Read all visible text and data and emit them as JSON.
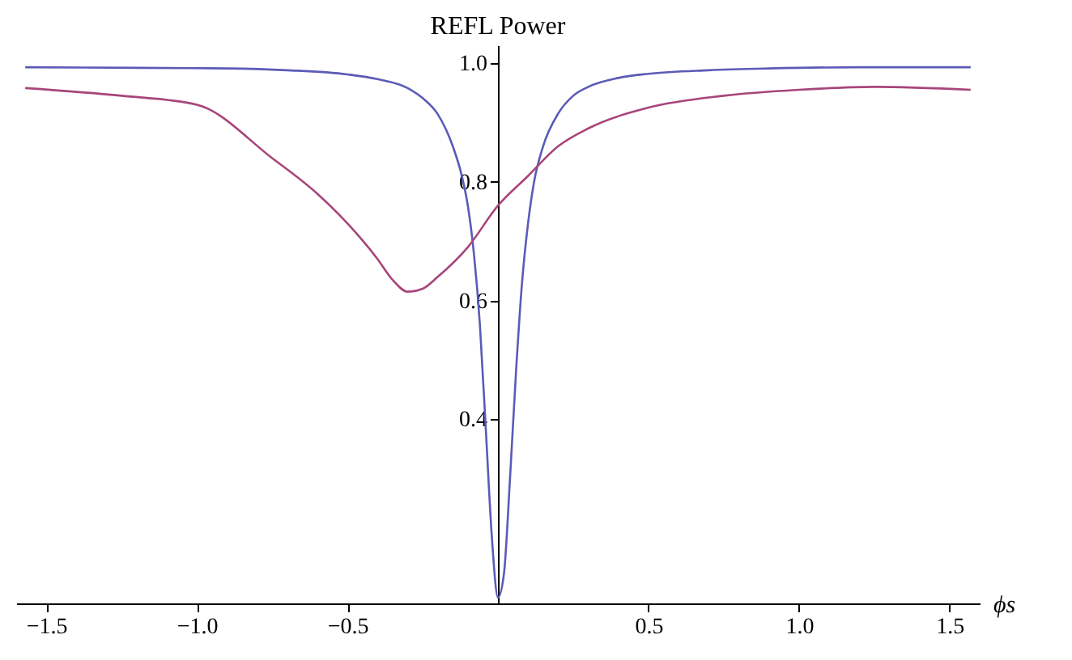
{
  "chart_data": {
    "type": "line",
    "title": "REFL Power",
    "xlabel": "ϕs",
    "xlim": [
      -1.6,
      1.6
    ],
    "ylim": [
      0.09,
      1.03
    ],
    "xticks": [
      {
        "value": -1.5,
        "label": "−1.5"
      },
      {
        "value": -1,
        "label": "−1.0"
      },
      {
        "value": -0.5,
        "label": "−0.5"
      },
      {
        "value": 0.5,
        "label": "0.5"
      },
      {
        "value": 1,
        "label": "1.0"
      },
      {
        "value": 1.5,
        "label": "1.5"
      }
    ],
    "yticks": [
      {
        "value": 0.4,
        "label": "0.4"
      },
      {
        "value": 0.6,
        "label": "0.6"
      },
      {
        "value": 0.8,
        "label": "0.8"
      },
      {
        "value": 1,
        "label": "1.0"
      }
    ],
    "grid": false,
    "marker": "none",
    "line_style": "solid",
    "series": [
      {
        "color": "#5b5bb8",
        "x": [
          -1.57,
          -1.2,
          -0.9,
          -0.7,
          -0.5,
          -0.4,
          -0.3,
          -0.25,
          -0.2,
          -0.15,
          -0.12,
          -0.1,
          -0.08,
          -0.06,
          -0.04,
          -0.02,
          0,
          0.02,
          0.04,
          0.06,
          0.08,
          0.1,
          0.12,
          0.15,
          0.2,
          0.25,
          0.3,
          0.4,
          0.5,
          0.7,
          0.9,
          1.2,
          1.57
        ],
        "values": [
          0.993,
          0.992,
          0.991,
          0.988,
          0.981,
          0.973,
          0.958,
          0.941,
          0.914,
          0.86,
          0.81,
          0.76,
          0.68,
          0.56,
          0.38,
          0.2,
          0.1,
          0.14,
          0.3,
          0.48,
          0.63,
          0.73,
          0.8,
          0.86,
          0.915,
          0.945,
          0.96,
          0.975,
          0.982,
          0.988,
          0.991,
          0.993,
          0.993
        ]
      },
      {
        "color": "#a8457a",
        "x": [
          -1.57,
          -1.25,
          -1,
          -0.75,
          -0.6,
          -0.5,
          -0.4,
          -0.35,
          -0.3,
          -0.25,
          -0.2,
          -0.1,
          0,
          0.1,
          0.2,
          0.3,
          0.5,
          0.75,
          1,
          1.25,
          1.57
        ],
        "values": [
          0.958,
          0.945,
          0.93,
          0.84,
          0.78,
          0.73,
          0.67,
          0.635,
          0.615,
          0.62,
          0.64,
          0.69,
          0.76,
          0.81,
          0.86,
          0.89,
          0.925,
          0.945,
          0.955,
          0.96,
          0.955
        ]
      }
    ]
  }
}
